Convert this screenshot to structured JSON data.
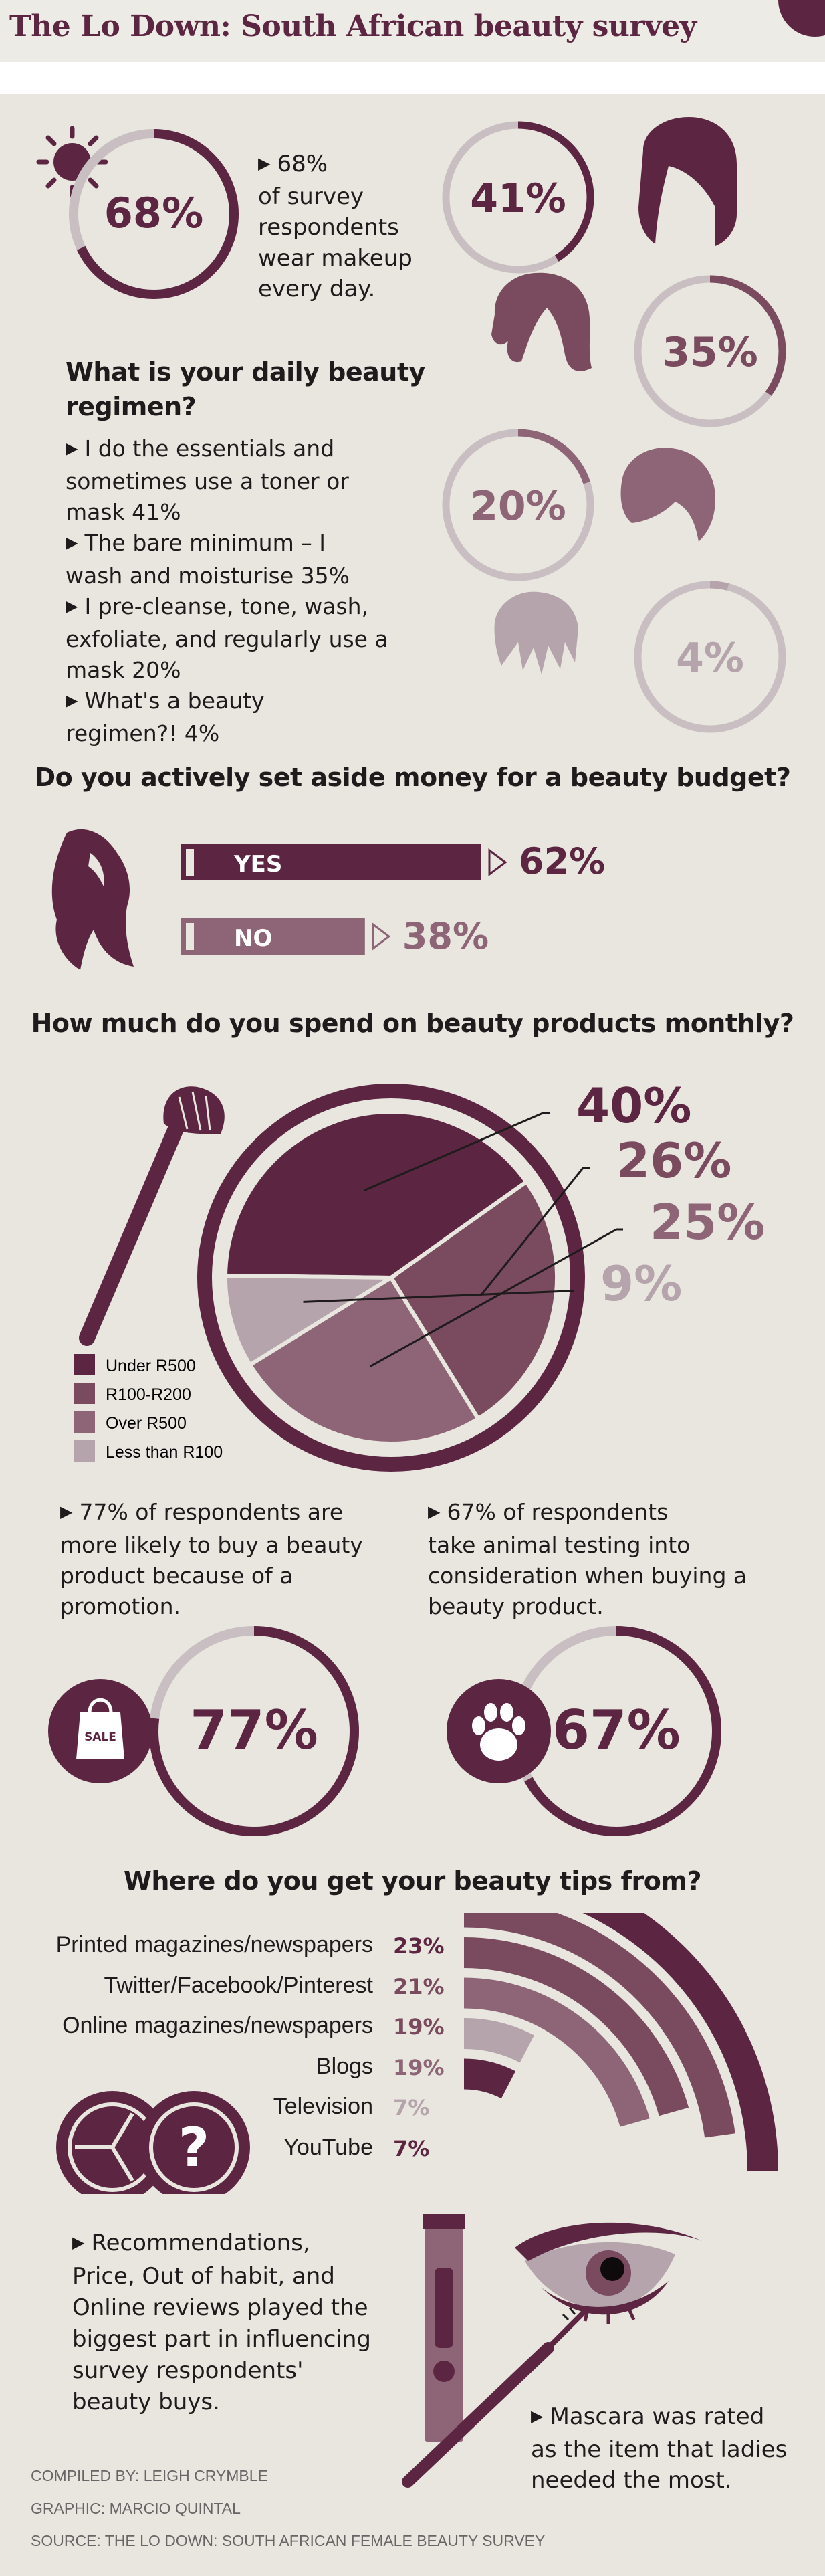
{
  "title": "The Lo Down: South African beauty survey",
  "makeup": {
    "pct_label": "68%",
    "text": [
      "68%",
      "of survey",
      "respondents",
      "wear makeup",
      "every day."
    ],
    "value": 68
  },
  "regimen": {
    "heading": [
      "What is your daily beauty",
      "regimen?"
    ],
    "items": [
      {
        "lines": [
          "I do the essentials and",
          "sometimes use a toner or",
          "mask 41%"
        ]
      },
      {
        "lines": [
          "The bare minimum – I",
          "wash and moisturise 35%"
        ]
      },
      {
        "lines": [
          "I pre-cleanse, tone, wash,",
          "exfoliate, and regularly use a",
          "mask 20%"
        ]
      },
      {
        "lines": [
          "What's a beauty",
          "regimen?! 4%"
        ]
      }
    ],
    "rings": [
      {
        "label": "41%",
        "value": 41,
        "color": "#5c2643"
      },
      {
        "label": "35%",
        "value": 35,
        "color": "#7a4a5e"
      },
      {
        "label": "20%",
        "value": 20,
        "color": "#8d6577"
      },
      {
        "label": "4%",
        "value": 4,
        "color": "#b5a4ab"
      }
    ]
  },
  "budget": {
    "heading": "Do you actively set aside money for a beauty budget?",
    "yes_label": "YES",
    "yes_value": 62,
    "yes_pct": "62%",
    "no_label": "NO",
    "no_value": 38,
    "no_pct": "38%"
  },
  "spend": {
    "heading": "How much do you spend on beauty products monthly?",
    "labels": [
      "40%",
      "26%",
      "25%",
      "9%"
    ],
    "legend": [
      "Under R500",
      "R100-R200",
      "Over R500",
      "Less than R100"
    ]
  },
  "promo": {
    "text": [
      "77% of respondents are",
      "more likely to buy a beauty",
      "product because of a",
      "promotion."
    ],
    "pct_label": "77%",
    "value": 77,
    "bag_label": "SALE"
  },
  "animal": {
    "text": [
      "67% of respondents",
      "take animal testing into",
      "consideration when buying a",
      "beauty product."
    ],
    "pct_label": "67%",
    "value": 67
  },
  "tips": {
    "heading": "Where do you get your beauty tips from?"
  },
  "influence": {
    "lines": [
      "Recommendations,",
      "Price, Out of habit, and",
      "Online reviews played the",
      "biggest part in influencing",
      "survey respondents'",
      "beauty buys."
    ]
  },
  "mascara": {
    "lines": [
      "Mascara was rated",
      "as the item that ladies",
      "needed the most."
    ]
  },
  "credits": {
    "compiled": "COMPILED BY: LEIGH CRYMBLE",
    "graphic": "GRAPHIC: MARCIO QUINTAL",
    "source": "SOURCE: THE LO DOWN: SOUTH AFRICAN FEMALE BEAUTY SURVEY"
  },
  "colors": {
    "plum": "#5c2643",
    "mauve": "#7a4a5e",
    "dusty": "#8d6577",
    "light": "#b5a4ab",
    "track": "#c9bfc2",
    "bg": "#e8e6df"
  },
  "chart_data": [
    {
      "type": "pie",
      "labels": [
        "Under R500",
        "R100-R200",
        "Over R500",
        "Less than R100"
      ],
      "values": [
        40,
        26,
        25,
        9
      ],
      "title": "How much do you spend on beauty products monthly?"
    },
    {
      "type": "bar",
      "categories": [
        "Printed magazines/newspapers",
        "Twitter/Facebook/Pinterest",
        "Online magazines/newspapers",
        "Blogs",
        "Television",
        "YouTube"
      ],
      "values": [
        23,
        21,
        19,
        19,
        7,
        7
      ],
      "value_labels": [
        "23%",
        "21%",
        "19%",
        "19%",
        "7%",
        "7%"
      ],
      "title": "Where do you get your beauty tips from?"
    }
  ]
}
